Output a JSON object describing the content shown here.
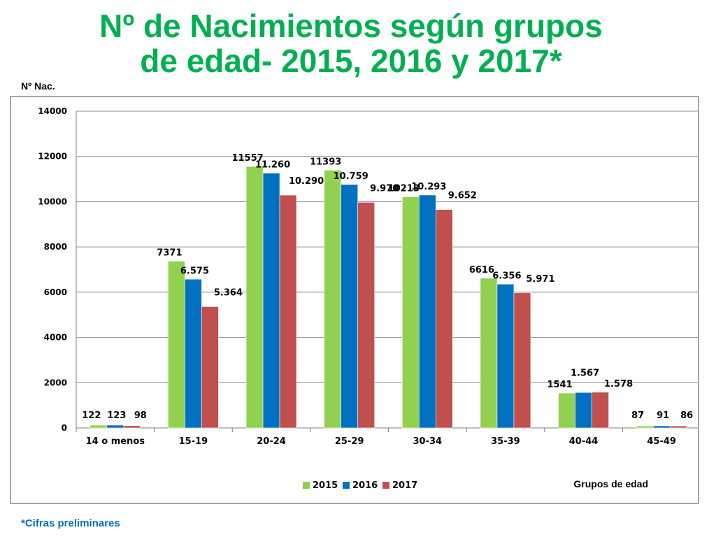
{
  "title_line1": "Nº de Nacimientos según grupos",
  "title_line2": "de edad- 2015, 2016 y 2017*",
  "footnote": "*Cifras preliminares",
  "colors": {
    "title": "#00b050",
    "footnote": "#0070c0",
    "s2015": "#92d050",
    "s2016": "#0070c0",
    "s2017": "#c0504d"
  },
  "chart_data": {
    "type": "bar",
    "title": "",
    "xlabel": "Grupos de edad",
    "ylabel": "Nº Nac.",
    "ylim": [
      0,
      14000
    ],
    "yticks": [
      "0",
      "2000",
      "4000",
      "6000",
      "8000",
      "10000",
      "12000",
      "14000"
    ],
    "grid": true,
    "legend_position": "bottom",
    "categories": [
      "14 o menos",
      "15-19",
      "20-24",
      "25-29",
      "30-34",
      "35-39",
      "40-44",
      "45-49"
    ],
    "series": [
      {
        "name": "2015",
        "values": [
          122,
          7371,
          11557,
          11393,
          10213,
          6616,
          1541,
          87
        ],
        "labels": [
          "122",
          "7371",
          "11557",
          "11393",
          "10213",
          "6616",
          "1541",
          "87"
        ]
      },
      {
        "name": "2016",
        "values": [
          123,
          6575,
          11260,
          10759,
          10293,
          6356,
          1567,
          91
        ],
        "labels": [
          "123",
          "6.575",
          "11.260",
          "10.759",
          "10.293",
          "6.356",
          "1.567",
          "91"
        ]
      },
      {
        "name": "2017",
        "values": [
          98,
          5364,
          10290,
          9970,
          9652,
          5971,
          1578,
          86
        ],
        "labels": [
          "98",
          "5.364",
          "10.290",
          "9.970",
          "9.652",
          "5.971",
          "1.578",
          "86"
        ]
      }
    ]
  }
}
